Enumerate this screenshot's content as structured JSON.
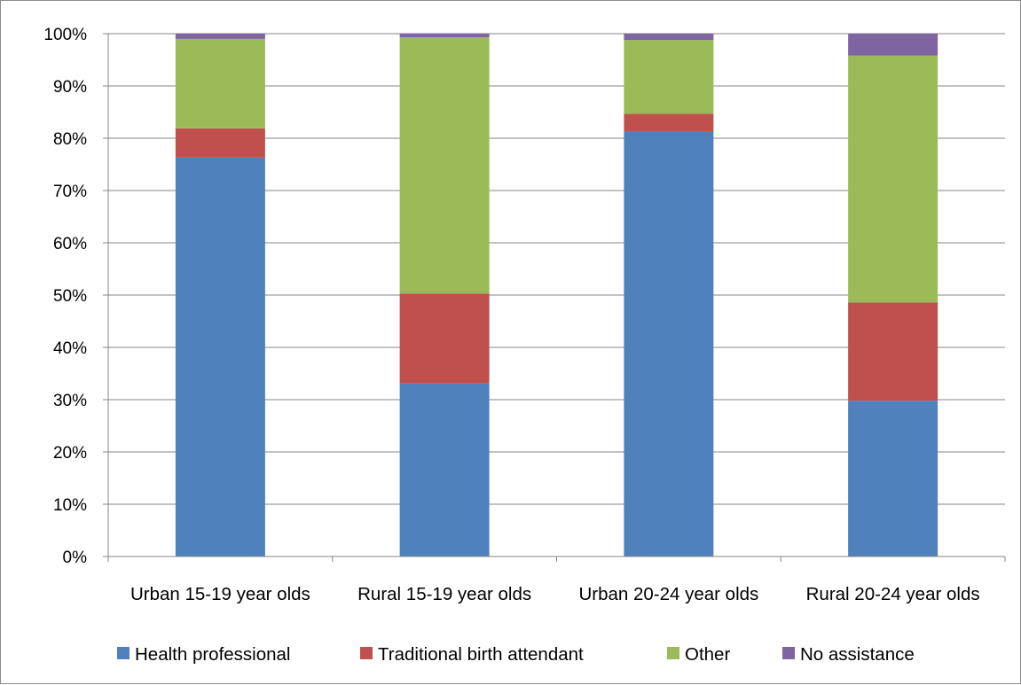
{
  "chart_data": {
    "type": "bar",
    "stacked": "percent",
    "categories": [
      "Urban 15-19 year olds",
      "Rural 15-19 year olds",
      "Urban 20-24 year olds",
      "Rural 20-24 year olds"
    ],
    "series": [
      {
        "name": "Health professional",
        "color": "#4f81bd",
        "values": [
          76.3,
          33.1,
          81.2,
          29.8
        ]
      },
      {
        "name": "Traditional birth attendant",
        "color": "#c0504d",
        "values": [
          5.6,
          17.2,
          3.5,
          18.8
        ]
      },
      {
        "name": "Other",
        "color": "#9bbb59",
        "values": [
          17.1,
          49.0,
          14.1,
          47.2
        ]
      },
      {
        "name": "No assistance",
        "color": "#8064a2",
        "values": [
          1.0,
          0.7,
          1.2,
          4.2
        ]
      }
    ],
    "yticks": [
      "0%",
      "10%",
      "20%",
      "30%",
      "40%",
      "50%",
      "60%",
      "70%",
      "80%",
      "90%",
      "100%"
    ],
    "ylim": [
      0,
      100
    ],
    "grid": true,
    "legend": "bottom"
  }
}
